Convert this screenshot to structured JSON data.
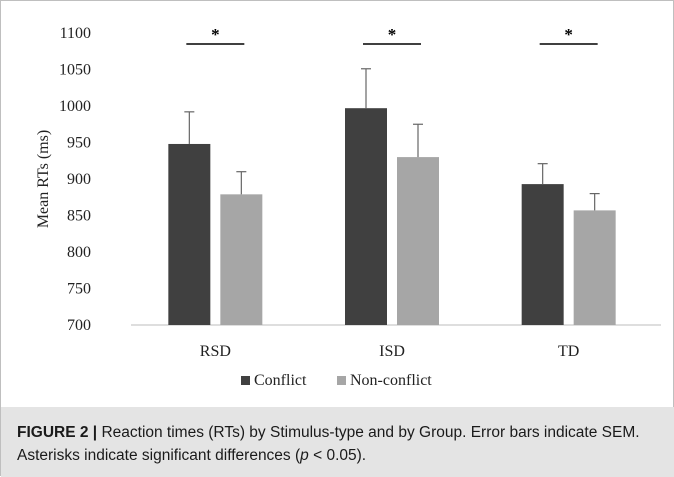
{
  "chart_data": {
    "type": "bar",
    "title": "",
    "xlabel": "",
    "ylabel": "Mean RTs (ms)",
    "ylim": [
      700,
      1100
    ],
    "yticks": [
      700,
      750,
      800,
      850,
      900,
      950,
      1000,
      1050,
      1100
    ],
    "categories": [
      "RSD",
      "ISD",
      "TD"
    ],
    "series": [
      {
        "name": "Conflict",
        "values": [
          948,
          997,
          893
        ],
        "errors": [
          44,
          54,
          28
        ],
        "color": "#404040"
      },
      {
        "name": "Non-conflict",
        "values": [
          879,
          930,
          857
        ],
        "errors": [
          31,
          45,
          23
        ],
        "color": "#a6a6a6"
      }
    ],
    "significance_markers": [
      "*",
      "*",
      "*"
    ],
    "grid": false,
    "legend_position": "bottom-center"
  },
  "caption": {
    "label": "FIGURE 2 |",
    "text_before_p": " Reaction times (RTs) by Stimulus-type and by Group. Error bars indicate SEM. Asterisks indicate significant differences (",
    "p_symbol": "p",
    "text_after_p": " < 0.05)."
  }
}
